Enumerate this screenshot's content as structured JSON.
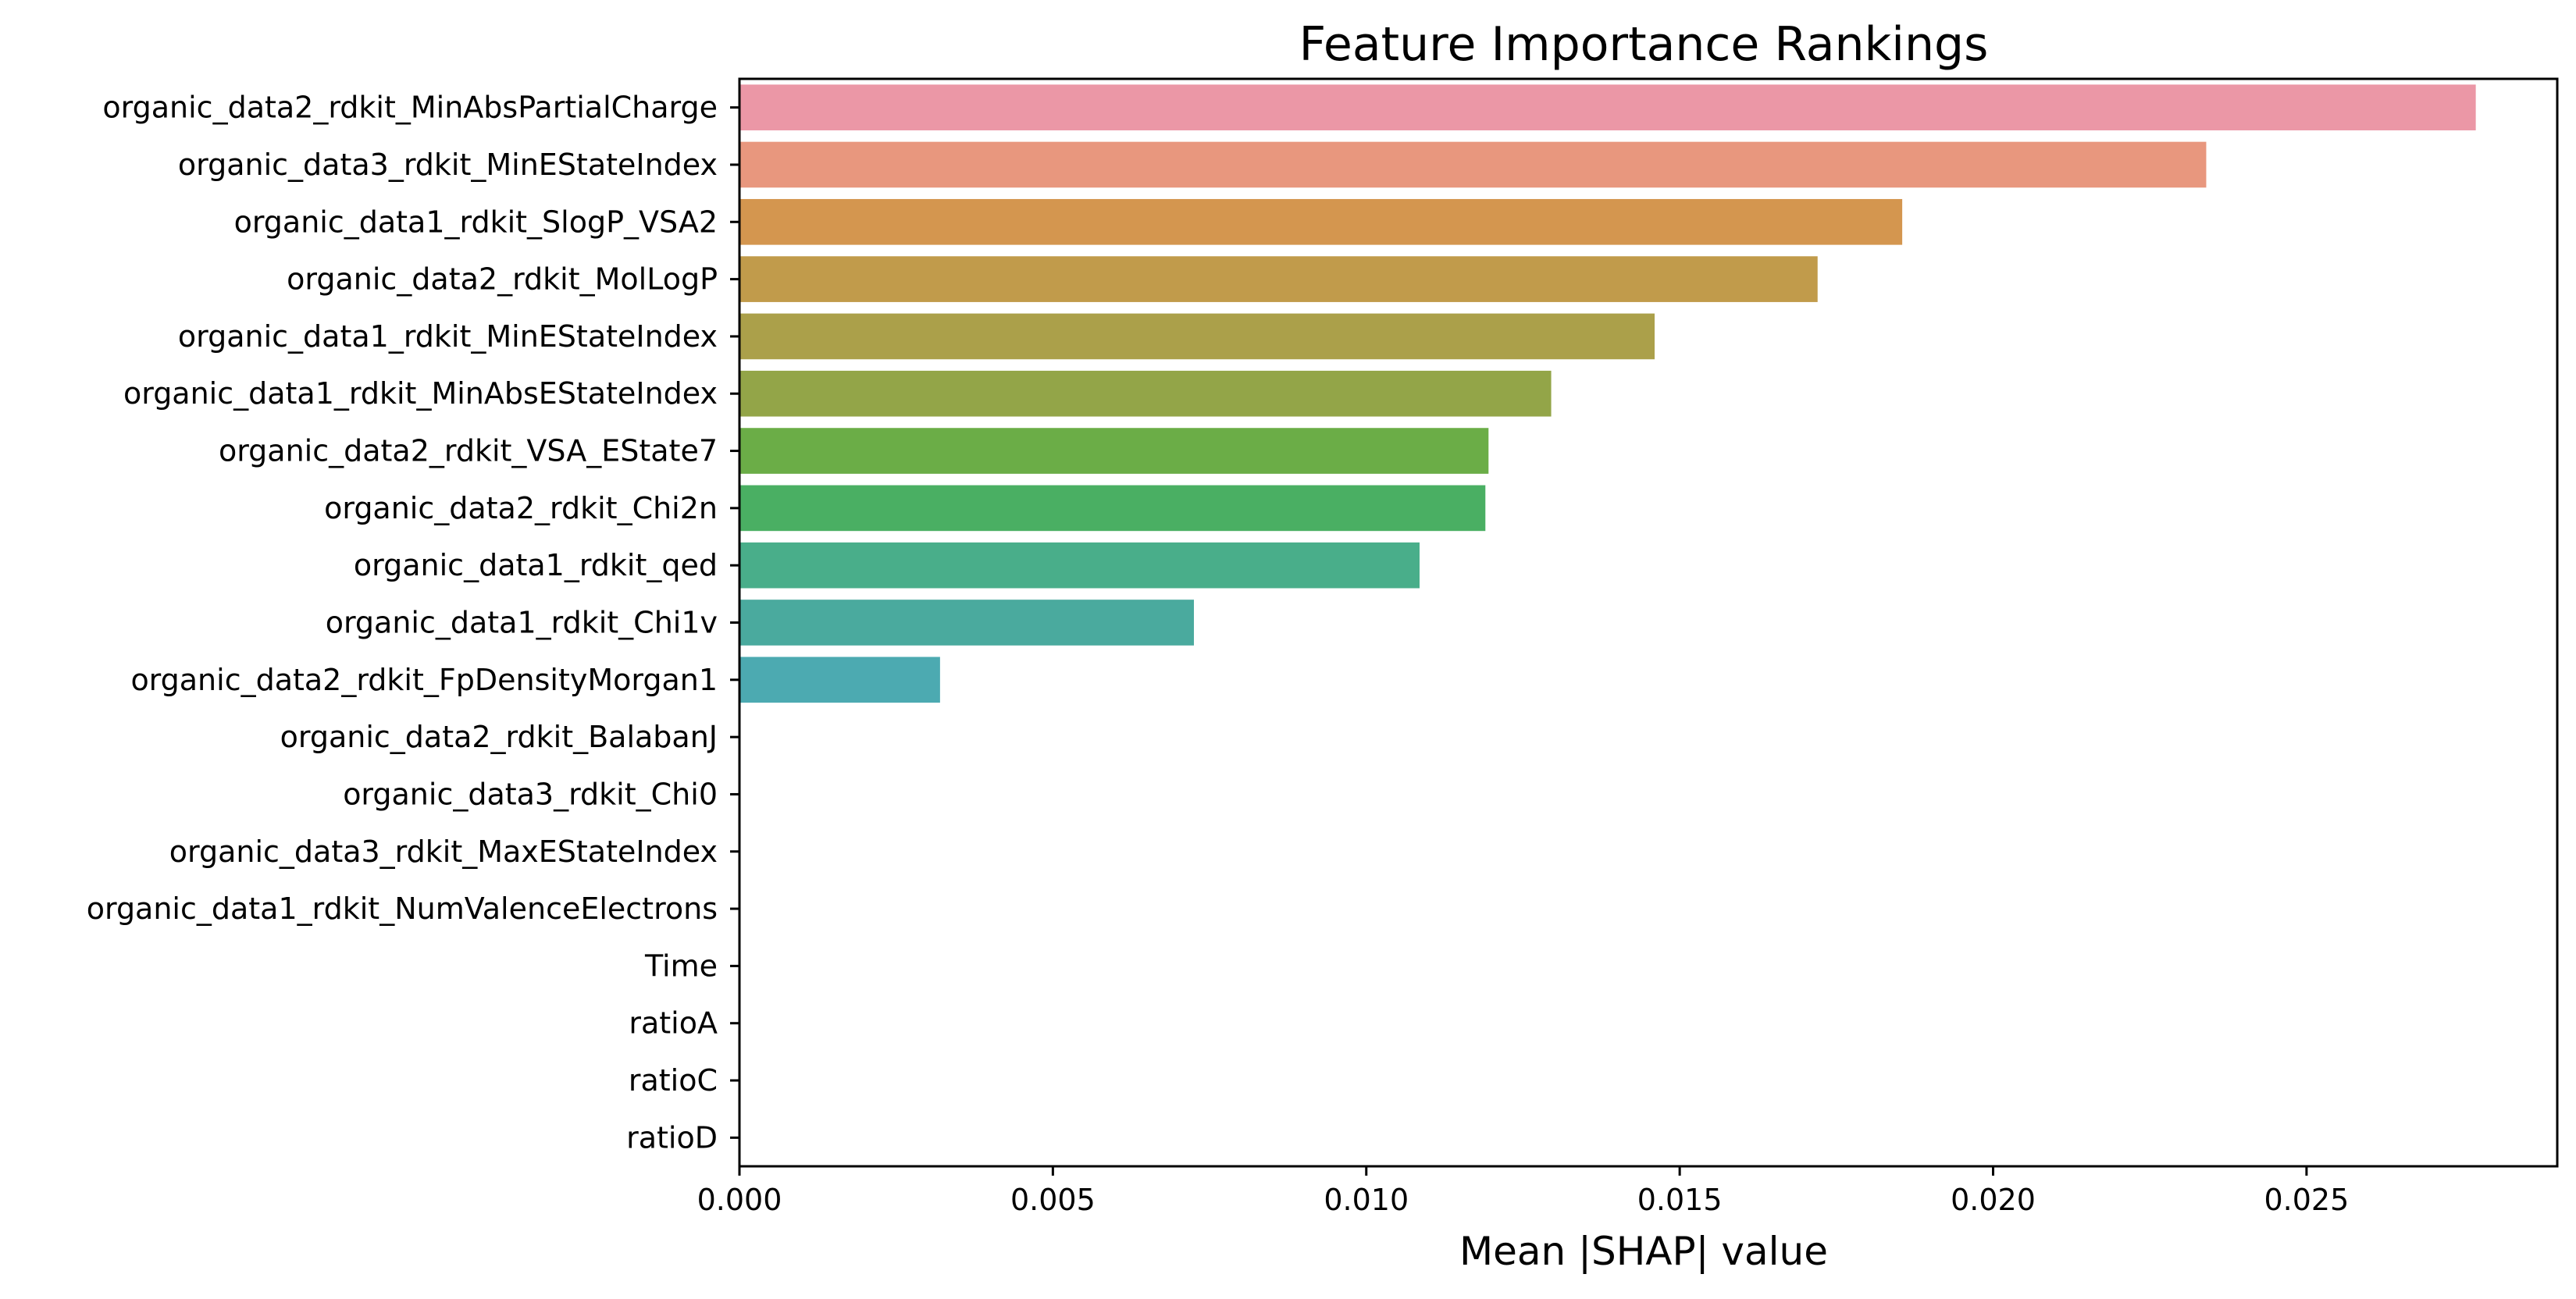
{
  "chart_data": {
    "type": "bar",
    "orientation": "horizontal",
    "title": "Feature Importance Rankings",
    "xlabel": "Mean |SHAP| value",
    "ylabel": "",
    "xlim": [
      0,
      0.029
    ],
    "xticks": [
      "0.000",
      "0.005",
      "0.010",
      "0.015",
      "0.020",
      "0.025"
    ],
    "grid": false,
    "categories": [
      "organic_data2_rdkit_MinAbsPartialCharge",
      "organic_data3_rdkit_MinEStateIndex",
      "organic_data1_rdkit_SlogP_VSA2",
      "organic_data2_rdkit_MolLogP",
      "organic_data1_rdkit_MinEStateIndex",
      "organic_data1_rdkit_MinAbsEStateIndex",
      "organic_data2_rdkit_VSA_EState7",
      "organic_data2_rdkit_Chi2n",
      "organic_data1_rdkit_qed",
      "organic_data1_rdkit_Chi1v",
      "organic_data2_rdkit_FpDensityMorgan1",
      "organic_data2_rdkit_BalabanJ",
      "organic_data3_rdkit_Chi0",
      "organic_data3_rdkit_MaxEStateIndex",
      "organic_data1_rdkit_NumValenceElectrons",
      "Time",
      "ratioA",
      "ratioC",
      "ratioD"
    ],
    "values": [
      0.0277,
      0.0234,
      0.01855,
      0.0172,
      0.0146,
      0.01295,
      0.01195,
      0.0119,
      0.01085,
      0.00725,
      0.0032,
      0,
      0,
      0,
      0,
      0,
      0,
      0,
      0
    ],
    "colors": [
      "#eb97a6",
      "#e8977e",
      "#d4964f",
      "#c19b4b",
      "#aba04a",
      "#93a548",
      "#6bad47",
      "#4aaf63",
      "#49ae8a",
      "#4aaa9e",
      "#4caab1",
      "#50abc3",
      "#55a8d2",
      "#7ba0e6",
      "#a88fef",
      "#d27ff0",
      "#ef78e0",
      "#f27abf",
      "#f286a6"
    ]
  }
}
